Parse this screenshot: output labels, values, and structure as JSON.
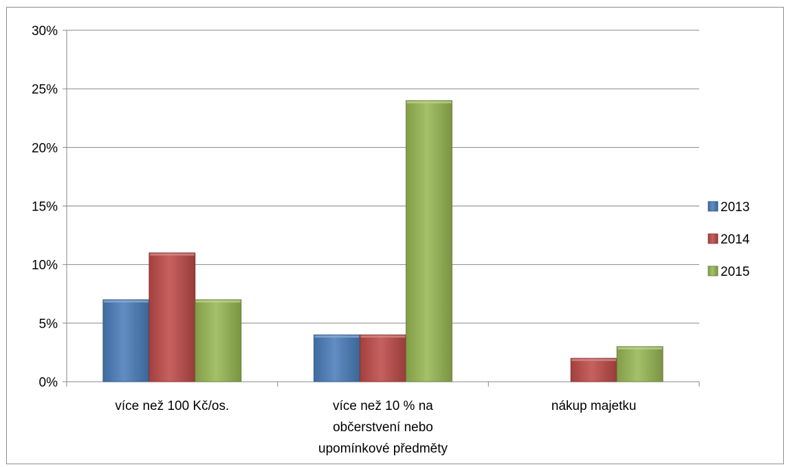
{
  "chart_data": {
    "type": "bar",
    "title": "",
    "xlabel": "",
    "ylabel": "",
    "ylim": [
      0,
      30
    ],
    "y_tick_format": "percent",
    "y_ticks": [
      "0%",
      "5%",
      "10%",
      "15%",
      "20%",
      "25%",
      "30%"
    ],
    "grid": true,
    "legend_position": "right",
    "categories": [
      [
        "více než 100 Kč/os."
      ],
      [
        "více než 10 % na",
        "občerstvení nebo",
        "upomínkové předměty"
      ],
      [
        "nákup majetku"
      ]
    ],
    "series": [
      {
        "name": "2013",
        "color": "#4a7ebb",
        "values": [
          7,
          4,
          0
        ]
      },
      {
        "name": "2014",
        "color": "#be4b48",
        "values": [
          11,
          4,
          2
        ]
      },
      {
        "name": "2015",
        "color": "#98b954",
        "values": [
          7,
          24,
          3
        ]
      }
    ]
  }
}
